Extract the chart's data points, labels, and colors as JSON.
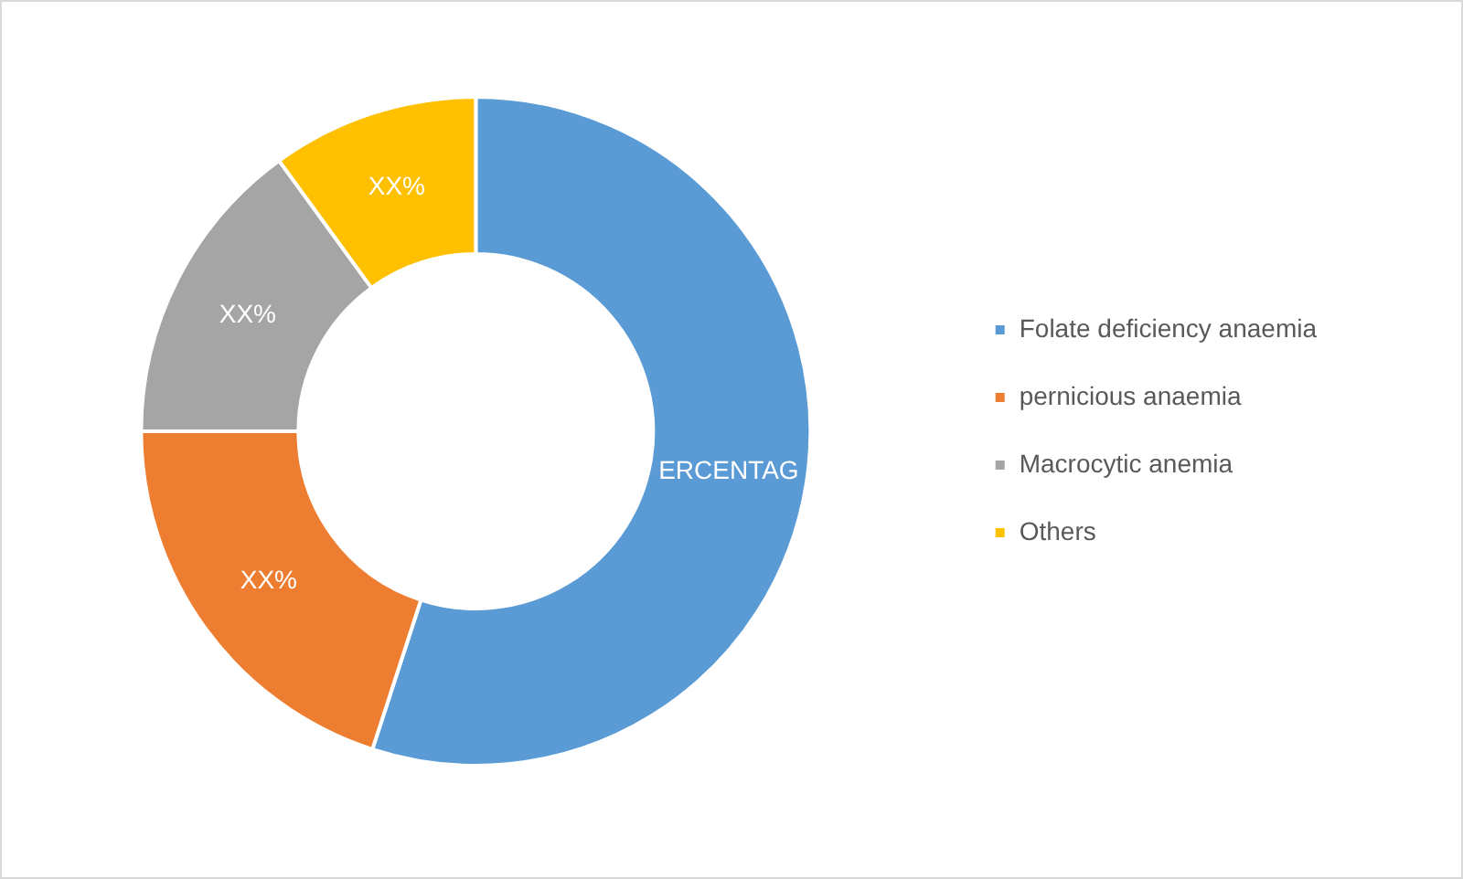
{
  "chart_data": {
    "type": "donut",
    "categories": [
      "Folate deficiency anaemia",
      "pernicious anaemia",
      "Macrocytic anemia",
      "Others"
    ],
    "values": [
      55,
      20,
      15,
      10
    ],
    "colors": [
      "#5b9bd5",
      "#ed7d31",
      "#a5a5a5",
      "#ffc000"
    ],
    "value_labels": [
      "ERCENTAG",
      "XX%",
      "XX%",
      "XX%"
    ],
    "legend": "right"
  }
}
